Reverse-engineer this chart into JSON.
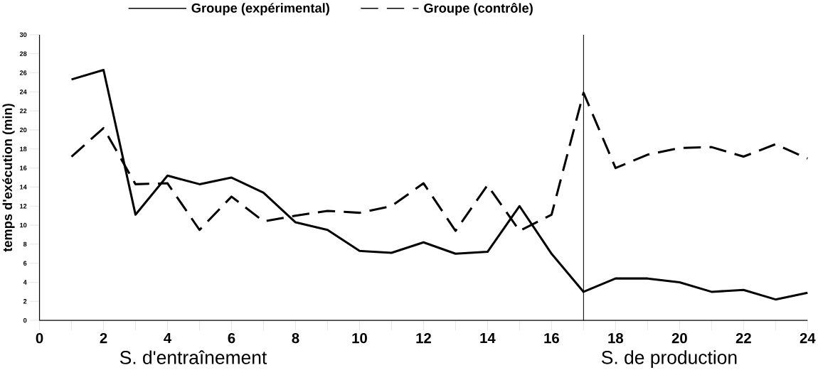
{
  "chart_data": {
    "type": "line",
    "ylabel": "temps d'exécution (min)",
    "x": [
      1,
      2,
      3,
      4,
      5,
      6,
      7,
      8,
      9,
      10,
      11,
      12,
      13,
      14,
      15,
      16,
      17,
      18,
      19,
      20,
      21,
      22,
      23,
      24
    ],
    "series": [
      {
        "name": "Groupe (expérimental)",
        "color": "#000000",
        "line_style": "solid",
        "values": [
          25.3,
          26.3,
          11.1,
          15.2,
          14.3,
          15.0,
          13.4,
          10.3,
          9.5,
          7.3,
          7.1,
          8.2,
          7.0,
          7.2,
          12.0,
          7.0,
          3.0,
          4.4,
          4.4,
          4.0,
          3.0,
          3.2,
          2.2,
          2.9
        ]
      },
      {
        "name": "Groupe (contrôle)",
        "color": "#000000",
        "line_style": "dashed",
        "values": [
          17.2,
          20.2,
          14.3,
          14.4,
          9.5,
          13.0,
          10.4,
          11.0,
          11.5,
          11.3,
          12.0,
          14.4,
          9.4,
          14.2,
          9.4,
          11.1,
          23.9,
          16.0,
          17.4,
          18.1,
          18.2,
          17.2,
          18.5,
          17.0
        ]
      }
    ],
    "xlim": [
      0,
      24
    ],
    "xticks": [
      0,
      {
        "value": 1,
        "label": null
      },
      2,
      {
        "value": 3,
        "label": null
      },
      4,
      {
        "value": 5,
        "label": null
      },
      6,
      {
        "value": 7,
        "label": null
      },
      8,
      {
        "value": 9,
        "label": null
      },
      10,
      {
        "value": 11,
        "label": null
      },
      12,
      {
        "value": 13,
        "label": null
      },
      14,
      {
        "value": 15,
        "label": null
      },
      16,
      {
        "value": 17,
        "label": null
      },
      18,
      {
        "value": 19,
        "label": null
      },
      20,
      {
        "value": 21,
        "label": null
      },
      22,
      {
        "value": 23,
        "label": null
      },
      24
    ],
    "ylim": [
      0,
      30
    ],
    "yticks": [
      0,
      2,
      4,
      6,
      8,
      10,
      12,
      14,
      16,
      18,
      20,
      22,
      24,
      26,
      28,
      30
    ],
    "ref_lines": [
      {
        "axis": "x",
        "value": 17,
        "color": "#000000"
      }
    ],
    "annotations": [
      "S. d'entraînement",
      "S. de production"
    ],
    "legend": "top",
    "grid": false,
    "marker": "none"
  }
}
